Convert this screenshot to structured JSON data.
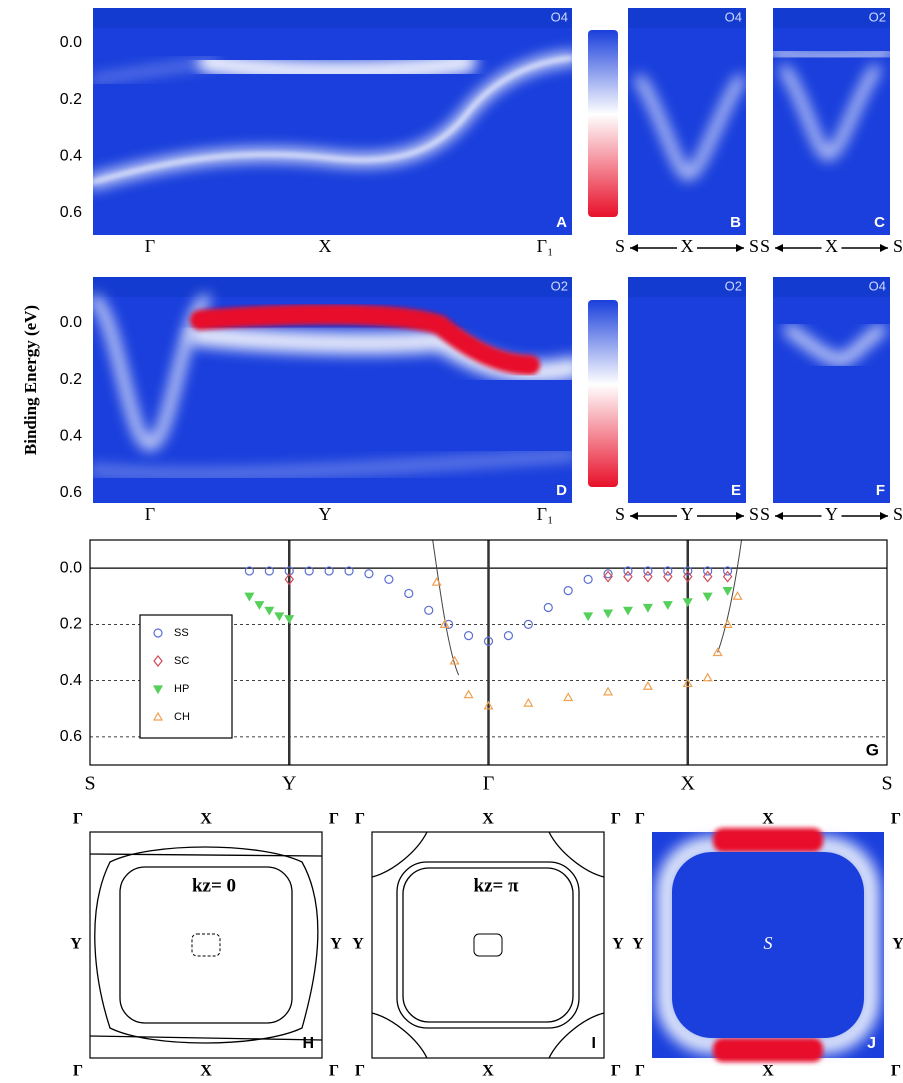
{
  "y_axis_label": "Binding Energy (eV)",
  "energy_ticks": [
    {
      "value": 0,
      "label": "0.0"
    },
    {
      "value": 0.2,
      "label": "0.2"
    },
    {
      "value": 0.4,
      "label": "0.4"
    },
    {
      "value": 0.6,
      "label": "0.6"
    }
  ],
  "panels": [
    {
      "letter": "A",
      "tag": "O4",
      "k_labels": [
        "Γ",
        "X",
        "Γ₁"
      ]
    },
    {
      "letter": "B",
      "tag": "O4",
      "k_labels": [
        "S",
        "X",
        "S"
      ]
    },
    {
      "letter": "C",
      "tag": "O2",
      "k_labels": [
        "S",
        "X",
        "S"
      ]
    },
    {
      "letter": "D",
      "tag": "O2",
      "k_labels": [
        "Γ",
        "Y",
        "Γ₁"
      ]
    },
    {
      "letter": "E",
      "tag": "O2",
      "k_labels": [
        "S",
        "Y",
        "S"
      ]
    },
    {
      "letter": "F",
      "tag": "O4",
      "k_labels": [
        "S",
        "Y",
        "S"
      ]
    }
  ],
  "chart_data": {
    "type": "scatter",
    "label": "G",
    "xlim": [
      0,
      4
    ],
    "xticks": [
      {
        "value": 0,
        "label": "S"
      },
      {
        "value": 1,
        "label": "Y"
      },
      {
        "value": 2,
        "label": "Γ"
      },
      {
        "value": 3,
        "label": "X"
      },
      {
        "value": 4,
        "label": "S"
      }
    ],
    "ylim": [
      -0.1,
      0.7
    ],
    "yticks": [
      {
        "value": 0,
        "label": "0.0"
      },
      {
        "value": 0.2,
        "label": "0.2"
      },
      {
        "value": 0.4,
        "label": "0.4"
      },
      {
        "value": 0.6,
        "label": "0.6"
      }
    ],
    "grid": true,
    "legend": "lower-left",
    "series": [
      {
        "name": "SS",
        "color": "#5b6fd2",
        "marker": "circle",
        "x": [
          0.8,
          0.9,
          1.0,
          1.1,
          1.2,
          1.3,
          1.4,
          1.5,
          1.6,
          1.7,
          1.8,
          1.9,
          2.0,
          2.1,
          2.2,
          2.3,
          2.4,
          2.5,
          2.6,
          2.7,
          2.8,
          2.9,
          3.0,
          3.1,
          3.2
        ],
        "values": [
          0.01,
          0.01,
          0.01,
          0.01,
          0.01,
          0.01,
          0.02,
          0.04,
          0.09,
          0.15,
          0.2,
          0.24,
          0.26,
          0.24,
          0.2,
          0.14,
          0.08,
          0.04,
          0.02,
          0.01,
          0.01,
          0.01,
          0.01,
          0.01,
          0.01
        ]
      },
      {
        "name": "SC",
        "color": "#d24a55",
        "marker": "diamond",
        "x": [
          1.0,
          2.6,
          2.7,
          2.8,
          2.9,
          3.0,
          3.1,
          3.2
        ],
        "values": [
          0.04,
          0.03,
          0.03,
          0.03,
          0.03,
          0.03,
          0.03,
          0.03
        ]
      },
      {
        "name": "HP",
        "color": "#55d05a",
        "marker": "tri-down",
        "x": [
          0.8,
          0.85,
          0.9,
          0.95,
          1.0,
          2.5,
          2.6,
          2.7,
          2.8,
          2.9,
          3.0,
          3.1,
          3.2
        ],
        "values": [
          0.1,
          0.13,
          0.15,
          0.17,
          0.18,
          0.17,
          0.16,
          0.15,
          0.14,
          0.13,
          0.12,
          0.1,
          0.08
        ]
      },
      {
        "name": "CH",
        "color": "#f0a050",
        "marker": "tri-up",
        "x": [
          1.74,
          1.78,
          1.83,
          1.9,
          2.0,
          2.2,
          2.4,
          2.6,
          2.8,
          3.0,
          3.1,
          3.15,
          3.2,
          3.25
        ],
        "values": [
          0.05,
          0.2,
          0.33,
          0.45,
          0.49,
          0.48,
          0.46,
          0.44,
          0.42,
          0.41,
          0.39,
          0.3,
          0.2,
          0.1
        ]
      }
    ]
  },
  "fermi_panels": [
    {
      "letter": "H",
      "title": "kz= 0",
      "corner_labels": [
        "Γ",
        "Γ",
        "Γ",
        "Γ"
      ],
      "edge_labels": [
        "X",
        "Y",
        "Y",
        "X"
      ]
    },
    {
      "letter": "I",
      "title": "kz= π",
      "corner_labels": [
        "Γ",
        "Γ",
        "Γ",
        "Γ"
      ],
      "edge_labels": [
        "X",
        "Y",
        "Y",
        "X"
      ]
    },
    {
      "letter": "J",
      "title": "S",
      "corner_labels": [
        "Γ",
        "Γ",
        "Γ",
        "Γ"
      ],
      "edge_labels": [
        "X",
        "Y",
        "Y",
        "X"
      ]
    }
  ]
}
